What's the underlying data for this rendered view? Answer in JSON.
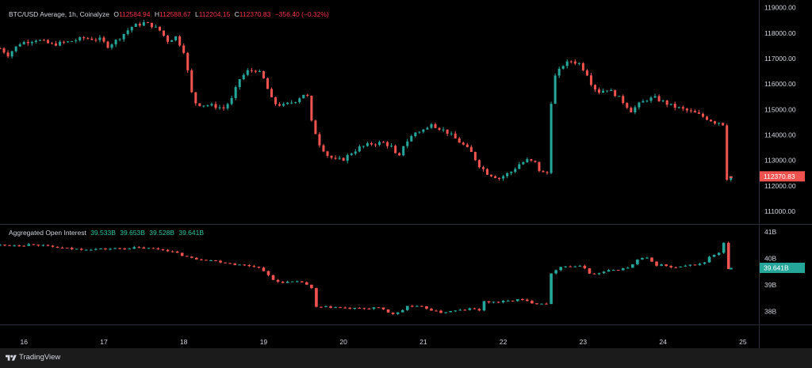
{
  "colors": {
    "up": "#26a69a",
    "down": "#ef5350",
    "background": "#000000",
    "grid_line": "#2a2e39",
    "text": "#d1d4dc",
    "price_badge": "#ef5350",
    "oi_badge": "#26a69a"
  },
  "header": {
    "symbol": "BTC/USD Average, 1h, Coinalyze",
    "o_key": "O",
    "o_val": "112584.94",
    "h_key": "H",
    "h_val": "112588.67",
    "l_key": "L",
    "l_val": "112204.15",
    "c_key": "C",
    "c_val": "112370.83",
    "change": "−356.40 (−0.32%)"
  },
  "oi_header": {
    "title": "Aggregated Open Interest",
    "o": "39.533B",
    "h": "39.653B",
    "l": "39.528B",
    "c": "39.641B"
  },
  "badges": {
    "price": "112370.83",
    "oi": "39.641B"
  },
  "footer": {
    "brand": "TradingView",
    "logo_icon": "tradingview-logo-icon"
  },
  "chart_data": [
    {
      "type": "candlestick",
      "title": "BTC/USD Average, 1h, Coinalyze",
      "x_ticks": [
        "16",
        "17",
        "18",
        "19",
        "20",
        "21",
        "22",
        "23",
        "24",
        "25"
      ],
      "xlim": [
        15.7,
        25.2
      ],
      "y_ticks": [
        "111000.00",
        "112000.00",
        "113000.00",
        "114000.00",
        "115000.00",
        "116000.00",
        "117000.00",
        "118000.00",
        "119000.00"
      ],
      "ylim": [
        110500,
        119300
      ],
      "last_close": 112370.83,
      "path": [
        [
          15.7,
          117400
        ],
        [
          15.8,
          117150
        ],
        [
          15.95,
          117600
        ],
        [
          16.15,
          117750
        ],
        [
          16.35,
          117550
        ],
        [
          16.55,
          117650
        ],
        [
          16.75,
          117800
        ],
        [
          16.95,
          117750
        ],
        [
          17.05,
          117500
        ],
        [
          17.15,
          117700
        ],
        [
          17.35,
          118250
        ],
        [
          17.5,
          118400
        ],
        [
          17.6,
          118300
        ],
        [
          17.7,
          118100
        ],
        [
          17.8,
          117700
        ],
        [
          17.9,
          117850
        ],
        [
          18.0,
          117300
        ],
        [
          18.05,
          116500
        ],
        [
          18.12,
          115300
        ],
        [
          18.2,
          115200
        ],
        [
          18.35,
          115150
        ],
        [
          18.5,
          115050
        ],
        [
          18.6,
          115400
        ],
        [
          18.7,
          116200
        ],
        [
          18.8,
          116500
        ],
        [
          18.9,
          116550
        ],
        [
          18.98,
          116350
        ],
        [
          19.05,
          115800
        ],
        [
          19.12,
          115250
        ],
        [
          19.25,
          115150
        ],
        [
          19.4,
          115350
        ],
        [
          19.5,
          115600
        ],
        [
          19.55,
          115500
        ],
        [
          19.6,
          114500
        ],
        [
          19.7,
          113650
        ],
        [
          19.8,
          113200
        ],
        [
          19.9,
          113000
        ],
        [
          20.0,
          113050
        ],
        [
          20.1,
          113300
        ],
        [
          20.2,
          113500
        ],
        [
          20.35,
          113650
        ],
        [
          20.5,
          113700
        ],
        [
          20.62,
          113500
        ],
        [
          20.68,
          112950
        ],
        [
          20.75,
          113600
        ],
        [
          20.9,
          114100
        ],
        [
          21.05,
          114250
        ],
        [
          21.1,
          114500
        ],
        [
          21.15,
          114350
        ],
        [
          21.3,
          114100
        ],
        [
          21.4,
          113850
        ],
        [
          21.5,
          113600
        ],
        [
          21.6,
          113300
        ],
        [
          21.7,
          112800
        ],
        [
          21.8,
          112500
        ],
        [
          21.95,
          112300
        ],
        [
          22.1,
          112550
        ],
        [
          22.2,
          112850
        ],
        [
          22.3,
          113000
        ],
        [
          22.4,
          112900
        ],
        [
          22.47,
          112500
        ],
        [
          22.55,
          112500
        ],
        [
          22.6,
          115300
        ],
        [
          22.65,
          116300
        ],
        [
          22.75,
          116750
        ],
        [
          22.85,
          116900
        ],
        [
          22.95,
          116800
        ],
        [
          23.05,
          116400
        ],
        [
          23.12,
          115900
        ],
        [
          23.2,
          115700
        ],
        [
          23.3,
          115800
        ],
        [
          23.4,
          115600
        ],
        [
          23.5,
          115300
        ],
        [
          23.6,
          114950
        ],
        [
          23.7,
          115200
        ],
        [
          23.8,
          115400
        ],
        [
          23.9,
          115450
        ],
        [
          24.0,
          115300
        ],
        [
          24.1,
          115150
        ],
        [
          24.25,
          115000
        ],
        [
          24.4,
          114850
        ],
        [
          24.55,
          114650
        ],
        [
          24.65,
          114500
        ],
        [
          24.72,
          114500
        ],
        [
          24.78,
          114350
        ],
        [
          24.8,
          112300
        ],
        [
          24.85,
          112370.83
        ]
      ]
    },
    {
      "type": "candlestick",
      "title": "Aggregated Open Interest",
      "x_ticks": [
        "16",
        "17",
        "18",
        "19",
        "20",
        "21",
        "22",
        "23",
        "24",
        "25"
      ],
      "xlim": [
        15.7,
        25.2
      ],
      "y_ticks": [
        "38B",
        "39B",
        "40B",
        "41B"
      ],
      "ylim": [
        37.5,
        41.3
      ],
      "last_close": 39.641,
      "path": [
        [
          15.7,
          40.5
        ],
        [
          16.0,
          40.5
        ],
        [
          16.1,
          40.55
        ],
        [
          16.3,
          40.45
        ],
        [
          16.6,
          40.35
        ],
        [
          17.0,
          40.35
        ],
        [
          17.4,
          40.4
        ],
        [
          17.7,
          40.35
        ],
        [
          17.8,
          40.3
        ],
        [
          18.0,
          40.1
        ],
        [
          18.1,
          40.0
        ],
        [
          18.3,
          39.95
        ],
        [
          18.5,
          39.85
        ],
        [
          18.7,
          39.75
        ],
        [
          18.9,
          39.7
        ],
        [
          19.0,
          39.55
        ],
        [
          19.1,
          39.2
        ],
        [
          19.2,
          39.1
        ],
        [
          19.4,
          39.1
        ],
        [
          19.5,
          39.1
        ],
        [
          19.6,
          38.85
        ],
        [
          19.65,
          38.15
        ],
        [
          19.9,
          38.15
        ],
        [
          20.1,
          38.1
        ],
        [
          20.3,
          38.1
        ],
        [
          20.4,
          38.15
        ],
        [
          20.5,
          38.05
        ],
        [
          20.6,
          37.9
        ],
        [
          20.7,
          37.95
        ],
        [
          20.8,
          38.2
        ],
        [
          21.0,
          38.15
        ],
        [
          21.1,
          38.05
        ],
        [
          21.2,
          37.95
        ],
        [
          21.35,
          38.0
        ],
        [
          21.5,
          38.05
        ],
        [
          21.6,
          38.1
        ],
        [
          21.7,
          38.05
        ],
        [
          21.75,
          38.35
        ],
        [
          21.95,
          38.35
        ],
        [
          22.1,
          38.4
        ],
        [
          22.2,
          38.45
        ],
        [
          22.4,
          38.3
        ],
        [
          22.55,
          38.3
        ],
        [
          22.6,
          39.4
        ],
        [
          22.7,
          39.7
        ],
        [
          22.8,
          39.7
        ],
        [
          22.95,
          39.7
        ],
        [
          23.05,
          39.6
        ],
        [
          23.1,
          39.35
        ],
        [
          23.2,
          39.45
        ],
        [
          23.35,
          39.55
        ],
        [
          23.5,
          39.6
        ],
        [
          23.6,
          39.7
        ],
        [
          23.7,
          40.0
        ],
        [
          23.8,
          40.0
        ],
        [
          23.9,
          39.75
        ],
        [
          24.0,
          39.75
        ],
        [
          24.1,
          39.65
        ],
        [
          24.2,
          39.65
        ],
        [
          24.35,
          39.75
        ],
        [
          24.5,
          39.8
        ],
        [
          24.6,
          40.1
        ],
        [
          24.7,
          40.2
        ],
        [
          24.75,
          40.7
        ],
        [
          24.78,
          40.3
        ],
        [
          24.82,
          39.6
        ],
        [
          24.85,
          39.641
        ]
      ]
    }
  ]
}
